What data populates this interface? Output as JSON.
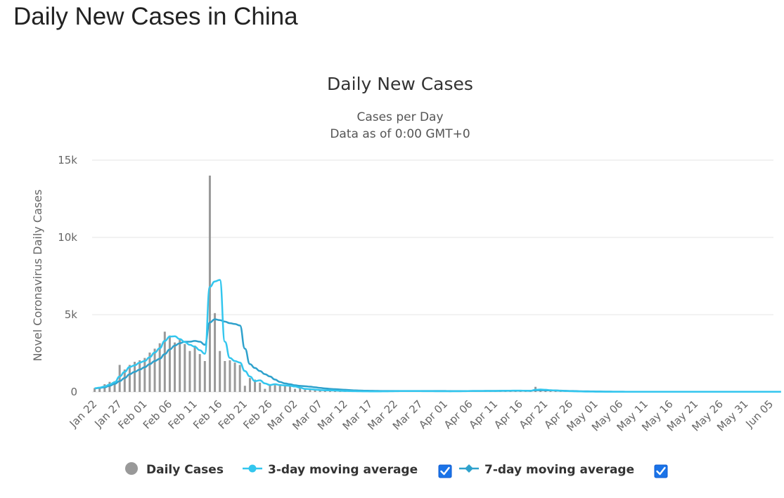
{
  "page": {
    "heading": "Daily New Cases in China"
  },
  "chart_data": {
    "type": "bar",
    "title": "Daily New Cases",
    "subtitle_line1": "Cases per Day",
    "subtitle_line2": "Data as of 0:00 GMT+0",
    "ylabel": "Novel Coronavirus Daily Cases",
    "xlabel": "",
    "ylim": [
      0,
      15000
    ],
    "y_ticks": [
      0,
      5000,
      10000,
      15000
    ],
    "y_tick_labels": [
      "0",
      "5k",
      "10k",
      "15k"
    ],
    "x_tick_labels": [
      "Jan 22",
      "Jan 27",
      "Feb 01",
      "Feb 06",
      "Feb 11",
      "Feb 16",
      "Feb 21",
      "Feb 26",
      "Mar 02",
      "Mar 07",
      "Mar 12",
      "Mar 17",
      "Mar 22",
      "Mar 27",
      "Apr 01",
      "Apr 06",
      "Apr 11",
      "Apr 16",
      "Apr 21",
      "Apr 26",
      "May 01",
      "May 06",
      "May 11",
      "May 16",
      "May 21",
      "May 26",
      "May 31",
      "Jun 05"
    ],
    "x_start": "Jan 22",
    "x_end": "Jun 08",
    "grid": true,
    "legend_position": "bottom",
    "colors": {
      "daily": "#999999",
      "ma3": "#33c6ee",
      "ma7": "#2ea1cc",
      "grid": "#e6e6e6",
      "checkbox": "#1a73e8"
    },
    "series": [
      {
        "name": "Daily Cases",
        "type": "bar",
        "color": "#999999",
        "values": [
          250,
          300,
          500,
          650,
          700,
          1750,
          1450,
          1750,
          1950,
          2050,
          2200,
          2550,
          2800,
          3150,
          3900,
          3650,
          3200,
          3400,
          3100,
          2650,
          3000,
          2450,
          2000,
          14000,
          5100,
          2650,
          2000,
          2050,
          1900,
          1750,
          400,
          900,
          800,
          600,
          200,
          500,
          450,
          400,
          400,
          420,
          200,
          250,
          150,
          130,
          120,
          100,
          110,
          90,
          80,
          60,
          50,
          50,
          40,
          40,
          30,
          30,
          30,
          35,
          40,
          45,
          50,
          55,
          60,
          50,
          55,
          55,
          50,
          45,
          50,
          45,
          40,
          40,
          45,
          50,
          55,
          60,
          70,
          60,
          55,
          60,
          70,
          75,
          80,
          85,
          90,
          80,
          70,
          80,
          330,
          150,
          120,
          100,
          80,
          60,
          50,
          40,
          30,
          25,
          20,
          20,
          15,
          15,
          10,
          10,
          10,
          10,
          10,
          10,
          10,
          10,
          10,
          10,
          10,
          10,
          10,
          10,
          10,
          10,
          10,
          10,
          10,
          10,
          10,
          10,
          10,
          10,
          10,
          10,
          10,
          10,
          10,
          10,
          10,
          10,
          10,
          10
        ]
      },
      {
        "name": "3-day moving average",
        "type": "line",
        "color": "#33c6ee",
        "values": [
          240,
          280,
          350,
          480,
          620,
          1000,
          1300,
          1620,
          1720,
          1900,
          2000,
          2250,
          2550,
          2830,
          3300,
          3580,
          3600,
          3420,
          3230,
          3050,
          2920,
          2700,
          2470,
          6800,
          7150,
          7250,
          3250,
          2200,
          2000,
          1900,
          1350,
          1000,
          700,
          750,
          550,
          450,
          500,
          450,
          420,
          400,
          350,
          280,
          200,
          180,
          150,
          120,
          110,
          100,
          90,
          75,
          65,
          55,
          50,
          45,
          40,
          35,
          32,
          35,
          40,
          45,
          50,
          55,
          55,
          55,
          55,
          55,
          52,
          50,
          48,
          46,
          44,
          42,
          44,
          48,
          53,
          58,
          63,
          62,
          60,
          60,
          63,
          70,
          75,
          80,
          85,
          85,
          78,
          75,
          140,
          160,
          140,
          115,
          95,
          75,
          60,
          50,
          40,
          32,
          25,
          22,
          18,
          17,
          14,
          12,
          11,
          10,
          10,
          10,
          10,
          10,
          10,
          10,
          10,
          10,
          10,
          10,
          10,
          10,
          10,
          10,
          10,
          10,
          10,
          10,
          10,
          10,
          10,
          10,
          10,
          10,
          10,
          10,
          10,
          10,
          10,
          10,
          10,
          10
        ]
      },
      {
        "name": "7-day moving average",
        "type": "line",
        "color": "#2ea1cc",
        "values": [
          230,
          260,
          300,
          400,
          520,
          700,
          900,
          1150,
          1300,
          1450,
          1600,
          1800,
          2000,
          2150,
          2450,
          2750,
          3000,
          3150,
          3250,
          3250,
          3300,
          3250,
          3050,
          4500,
          4700,
          4650,
          4550,
          4450,
          4400,
          4300,
          2800,
          1800,
          1550,
          1350,
          1150,
          1000,
          800,
          650,
          550,
          500,
          430,
          390,
          370,
          340,
          300,
          260,
          230,
          200,
          180,
          160,
          140,
          120,
          100,
          90,
          80,
          75,
          70,
          65,
          65,
          65,
          65,
          65,
          65,
          65,
          65,
          65,
          65,
          65,
          65,
          60,
          60,
          58,
          58,
          58,
          58,
          60,
          62,
          64,
          66,
          68,
          70,
          72,
          74,
          76,
          78,
          80,
          78,
          75,
          110,
          110,
          105,
          100,
          95,
          85,
          75,
          65,
          55,
          45,
          40,
          35,
          30,
          26,
          22,
          20,
          18,
          16,
          14,
          12,
          11,
          10,
          10,
          10,
          10,
          10,
          10,
          10,
          10,
          10,
          10,
          10,
          10,
          10,
          10,
          10,
          10,
          10,
          10,
          10,
          10,
          10,
          10,
          10,
          10,
          10,
          10,
          10,
          10,
          10
        ]
      }
    ],
    "legend": [
      {
        "label": "Daily Cases",
        "has_checkbox": false
      },
      {
        "label": "3-day moving average",
        "has_checkbox": true,
        "checked": true
      },
      {
        "label": "7-day moving average",
        "has_checkbox": true,
        "checked": true
      }
    ]
  }
}
